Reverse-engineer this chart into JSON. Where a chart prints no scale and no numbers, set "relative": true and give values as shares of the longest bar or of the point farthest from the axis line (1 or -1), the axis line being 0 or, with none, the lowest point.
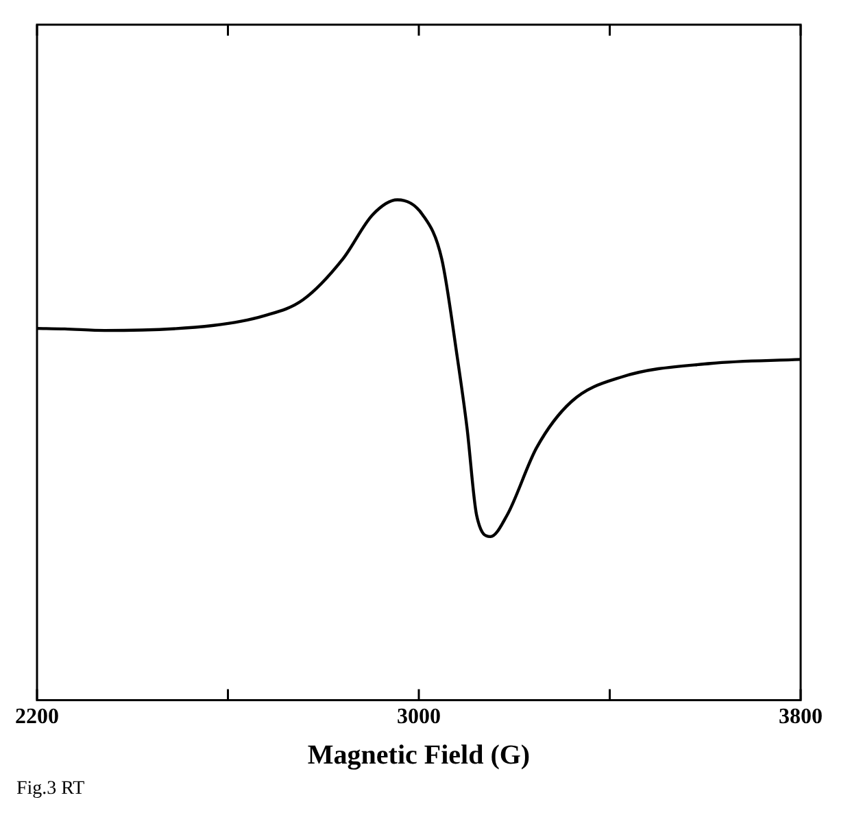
{
  "chart_data": {
    "type": "line",
    "xlabel": "Magnetic Field (G)",
    "relative": true,
    "tick_labels": "x",
    "grid": false,
    "legend": false,
    "marker": "none",
    "line_style": "solid",
    "xlim": [
      2200,
      3800
    ],
    "xticks": [
      2200,
      {
        "value": 2600,
        "label": null
      },
      3000,
      {
        "value": 3400,
        "label": null
      },
      3800
    ],
    "annotations": [
      "Fig.3 RT"
    ],
    "series": [
      {
        "color": "#000000",
        "x": [
          2200,
          2258,
          2342,
          2570,
          2675,
          2757,
          2841,
          2903,
          2955,
          3008,
          3048,
          3080,
          3101,
          3121,
          3150,
          3185,
          3247,
          3320,
          3425,
          3611,
          3800
        ],
        "values": [
          0.743,
          0.742,
          0.739,
          0.749,
          0.768,
          0.8,
          0.882,
          0.97,
          1.0,
          0.97,
          0.882,
          0.689,
          0.544,
          0.37,
          0.327,
          0.37,
          0.505,
          0.597,
          0.646,
          0.673,
          0.681
        ]
      }
    ]
  }
}
